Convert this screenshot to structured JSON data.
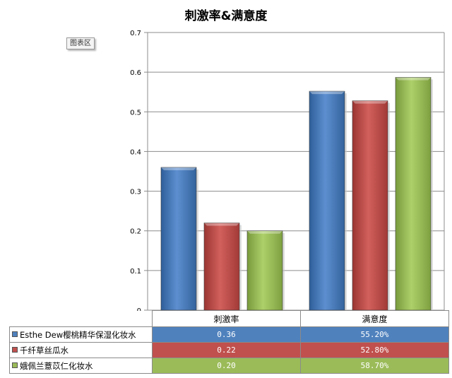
{
  "chart_data": {
    "type": "bar",
    "title": "刺激率&满意度",
    "categories": [
      "刺激率",
      "满意度"
    ],
    "series": [
      {
        "name": "Esthe Dew樱桃精华保湿化妆水",
        "color": "#4f81bd",
        "values": [
          0.36,
          0.552
        ],
        "labels": [
          "0.36",
          "55.20%"
        ]
      },
      {
        "name": "千纤草丝瓜水",
        "color": "#c0504d",
        "values": [
          0.22,
          0.528
        ],
        "labels": [
          "0.22",
          "52.80%"
        ]
      },
      {
        "name": "娥佩兰薏苡仁化妆水",
        "color": "#9bbb59",
        "values": [
          0.2,
          0.587
        ],
        "labels": [
          "0.20",
          "58.70%"
        ]
      }
    ],
    "ylim": [
      0,
      0.7
    ],
    "yticks": [
      "0",
      "0.1",
      "0.2",
      "0.3",
      "0.4",
      "0.5",
      "0.6",
      "0.7"
    ],
    "grid": true,
    "legend": "data-table-below"
  },
  "chart_area_badge": "图表区"
}
